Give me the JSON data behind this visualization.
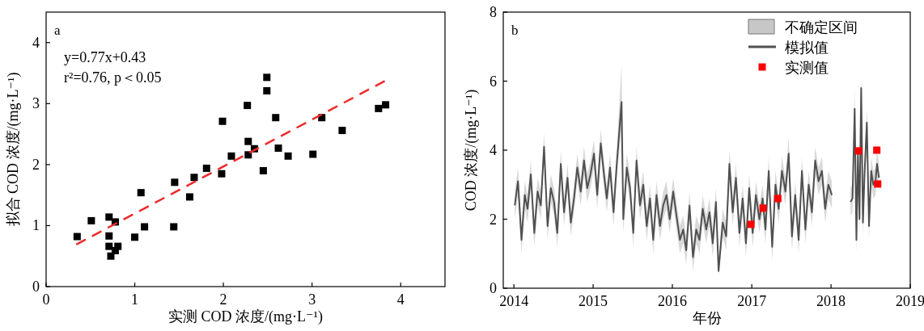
{
  "chart_data": [
    {
      "type": "scatter",
      "xlabel": "实测 COD 浓度/(mg·L⁻¹)",
      "ylabel": "拟合 COD 浓度/(mg·L⁻¹)",
      "xlim": [
        0,
        4.5
      ],
      "ylim": [
        0,
        4.5
      ],
      "xticks": [
        0,
        1,
        2,
        3,
        4
      ],
      "yticks": [
        0,
        1,
        2,
        3,
        4
      ],
      "marker": "square",
      "legend": false,
      "annotations": [
        "a",
        "y=0.77x+0.43",
        "r²=0.76, p＜0.05"
      ],
      "series": [
        {
          "color": "#000000",
          "x": [
            0.35,
            0.51,
            0.71,
            0.71,
            0.71,
            0.73,
            0.78,
            0.78,
            0.81,
            1.0,
            1.07,
            1.11,
            1.44,
            1.45,
            1.62,
            1.67,
            1.81,
            1.98,
            1.99,
            2.09,
            2.27,
            2.28,
            2.28,
            2.35,
            2.45,
            2.49,
            2.49,
            2.59,
            2.62,
            2.73,
            3.01,
            3.11,
            3.34,
            3.75,
            3.83
          ],
          "values": [
            0.82,
            1.08,
            1.14,
            0.83,
            0.66,
            0.5,
            0.59,
            1.06,
            0.66,
            0.81,
            1.54,
            0.98,
            0.98,
            1.71,
            1.47,
            1.79,
            1.94,
            1.85,
            2.71,
            2.14,
            2.97,
            2.38,
            2.16,
            2.26,
            1.9,
            3.43,
            3.21,
            2.77,
            2.27,
            2.14,
            2.17,
            2.77,
            2.56,
            2.92,
            2.98
          ]
        },
        {
          "type": "line",
          "marker": "none",
          "color": "#ee2a2a",
          "line_style": "dashed",
          "x": [
            0.34,
            3.82
          ],
          "values": [
            0.69,
            3.37
          ]
        }
      ]
    },
    {
      "type": "line",
      "xlabel": "年份",
      "ylabel": "COD 浓度/(mg·L⁻¹)",
      "xlim": [
        "2013-11-13",
        "2019-01-01"
      ],
      "ylim": [
        0,
        8
      ],
      "xticks": [
        {
          "value": "2014-01-01",
          "label": "2014"
        },
        {
          "value": "2015-01-01",
          "label": "2015"
        },
        {
          "value": "2016-01-01",
          "label": "2016"
        },
        {
          "value": "2017-01-01",
          "label": "2017"
        },
        {
          "value": "2018-01-01",
          "label": "2018"
        },
        {
          "value": "2019-01-01",
          "label": "2019"
        }
      ],
      "yticks": [
        0,
        2,
        4,
        6,
        8
      ],
      "marker": "square",
      "legend": "top right",
      "annotations": [
        "b",
        "不确定区间"
      ],
      "series": [
        {
          "name": "模拟值",
          "marker": "none",
          "color": "#505050",
          "x": [
            "2014-01-05",
            "2014-01-20",
            "2014-02-05",
            "2014-02-20",
            "2014-03-05",
            "2014-03-20",
            "2014-04-05",
            "2014-04-20",
            "2014-05-05",
            "2014-05-20",
            "2014-06-05",
            "2014-06-20",
            "2014-07-05",
            "2014-07-20",
            "2014-08-05",
            "2014-08-20",
            "2014-09-05",
            "2014-09-20",
            "2014-10-05",
            "2014-10-20",
            "2014-11-05",
            "2014-11-20",
            "2014-12-05",
            "2014-12-20",
            "2015-01-05",
            "2015-01-20",
            "2015-02-05",
            "2015-02-20",
            "2015-03-05",
            "2015-03-20",
            "2015-04-05",
            "2015-04-20",
            "2015-05-12",
            "2015-05-20",
            "2015-06-05",
            "2015-06-20",
            "2015-07-05",
            "2015-07-20",
            "2015-08-05",
            "2015-08-20",
            "2015-09-05",
            "2015-09-20",
            "2015-10-05",
            "2015-10-20",
            "2015-11-05",
            "2015-11-20",
            "2015-12-05",
            "2015-12-20",
            "2016-01-05",
            "2016-01-20",
            "2016-02-05",
            "2016-02-20",
            "2016-03-05",
            "2016-03-20",
            "2016-04-05",
            "2016-04-20",
            "2016-05-05",
            "2016-05-20",
            "2016-06-05",
            "2016-06-20",
            "2016-07-05",
            "2016-07-20",
            "2016-08-01",
            "2016-08-20",
            "2016-09-05",
            "2016-09-20",
            "2016-10-05",
            "2016-10-20",
            "2016-11-05",
            "2016-11-20",
            "2016-12-05",
            "2016-12-20",
            "2017-01-05",
            "2017-01-20",
            "2017-02-05",
            "2017-02-20",
            "2017-03-05",
            "2017-03-20",
            "2017-04-05",
            "2017-04-20",
            "2017-05-05",
            "2017-05-20",
            "2017-06-05",
            "2017-06-20",
            "2017-07-05",
            "2017-07-20",
            "2017-08-05",
            "2017-08-20",
            "2017-09-05",
            "2017-09-20",
            "2017-10-05",
            "2017-10-20",
            "2017-11-05",
            "2017-11-20",
            "2017-12-05",
            "2017-12-20",
            "2018-01-05",
            "2018-02-15",
            "2018-04-01",
            "2018-04-10",
            "2018-04-20",
            "2018-04-28",
            "2018-05-05",
            "2018-05-12",
            "2018-05-20",
            "2018-05-28",
            "2018-06-05",
            "2018-06-15",
            "2018-06-25",
            "2018-07-05",
            "2018-07-15",
            "2018-07-25",
            "2018-08-01",
            "2018-08-10"
          ],
          "values": [
            2.4,
            3.1,
            1.4,
            2.7,
            2.3,
            3.3,
            1.6,
            2.8,
            2.4,
            4.1,
            1.8,
            2.9,
            2.5,
            1.6,
            3.6,
            2.2,
            3.2,
            1.9,
            2.6,
            3.5,
            2.8,
            3.7,
            2.9,
            3.3,
            3.9,
            2.7,
            4.2,
            3.3,
            2.6,
            3.5,
            2.2,
            3.6,
            5.4,
            2.0,
            3.5,
            2.9,
            1.6,
            3.7,
            2.4,
            3.0,
            1.8,
            2.6,
            1.4,
            2.7,
            1.8,
            2.4,
            2.7,
            2.0,
            2.8,
            2.1,
            1.4,
            1.7,
            1.1,
            2.4,
            0.9,
            1.7,
            1.4,
            2.3,
            1.7,
            2.2,
            1.3,
            2.5,
            0.5,
            1.9,
            1.5,
            3.6,
            2.2,
            3.2,
            1.6,
            2.6,
            1.3,
            2.9,
            1.6,
            2.7,
            2.0,
            2.6,
            1.7,
            3.4,
            1.2,
            3.0,
            2.3,
            3.4,
            2.8,
            3.9,
            1.5,
            2.7,
            1.4,
            3.4,
            1.7,
            3.0,
            2.2,
            3.7,
            3.1,
            3.4,
            2.3,
            3.0,
            2.7,
            null,
            2.5,
            2.6,
            5.2,
            1.4,
            3.9,
            2.0,
            5.8,
            1.9,
            3.4,
            4.8,
            1.8,
            3.4,
            3.0,
            3.1,
            3.6,
            3.2
          ],
          "lower": [
            2.0,
            2.7,
            1.0,
            2.3,
            1.9,
            2.9,
            1.2,
            2.4,
            2.0,
            3.7,
            1.4,
            2.5,
            2.1,
            1.2,
            3.2,
            1.8,
            2.8,
            1.5,
            2.2,
            3.1,
            2.4,
            3.3,
            2.5,
            2.9,
            3.5,
            2.3,
            3.8,
            2.9,
            2.2,
            3.1,
            1.8,
            3.2,
            4.6,
            1.6,
            3.1,
            2.5,
            1.2,
            3.3,
            2.0,
            2.6,
            1.4,
            2.2,
            1.0,
            2.3,
            1.4,
            2.0,
            2.3,
            1.6,
            2.4,
            1.7,
            1.0,
            1.3,
            0.7,
            2.0,
            0.5,
            1.3,
            1.0,
            1.9,
            1.3,
            1.8,
            0.9,
            2.1,
            0.4,
            1.5,
            1.1,
            3.2,
            1.8,
            2.8,
            1.2,
            2.2,
            0.9,
            2.5,
            1.2,
            2.3,
            1.6,
            2.2,
            1.3,
            3.0,
            0.8,
            2.6,
            1.9,
            3.0,
            2.4,
            3.5,
            1.1,
            2.3,
            1.0,
            3.0,
            1.3,
            2.6,
            1.8,
            3.3,
            2.7,
            3.0,
            1.9,
            2.6,
            2.3,
            null,
            2.1,
            2.2,
            4.6,
            1.0,
            3.5,
            1.6,
            5.0,
            1.5,
            3.0,
            4.2,
            1.4,
            3.0,
            2.6,
            2.7,
            3.2,
            2.8
          ],
          "upper": [
            2.8,
            3.5,
            1.8,
            3.1,
            2.7,
            3.7,
            2.0,
            3.2,
            2.8,
            4.5,
            2.2,
            3.3,
            2.9,
            2.0,
            4.0,
            2.6,
            3.6,
            2.3,
            3.0,
            3.9,
            3.2,
            4.1,
            3.3,
            3.7,
            4.3,
            3.1,
            4.6,
            3.7,
            3.0,
            3.9,
            2.6,
            4.0,
            6.5,
            2.4,
            3.9,
            3.3,
            2.0,
            4.1,
            2.8,
            3.4,
            2.2,
            3.0,
            1.8,
            3.1,
            2.2,
            2.8,
            3.1,
            2.4,
            3.2,
            2.5,
            1.8,
            2.1,
            1.5,
            2.8,
            1.3,
            2.1,
            1.8,
            2.7,
            2.1,
            2.6,
            1.7,
            2.9,
            0.9,
            2.3,
            1.9,
            4.0,
            2.6,
            3.6,
            2.0,
            3.0,
            1.7,
            3.3,
            2.0,
            3.1,
            2.4,
            3.0,
            2.1,
            3.8,
            1.6,
            3.4,
            2.7,
            3.8,
            3.2,
            4.4,
            1.9,
            3.1,
            1.8,
            3.8,
            2.1,
            3.4,
            2.6,
            4.1,
            3.5,
            3.8,
            2.7,
            3.4,
            3.1,
            null,
            2.9,
            3.0,
            5.8,
            1.8,
            4.3,
            2.4,
            6.2,
            2.3,
            3.8,
            5.2,
            2.2,
            3.8,
            3.4,
            3.5,
            4.0,
            3.6
          ]
        },
        {
          "name": "实测值",
          "type": "scatter",
          "color": "#ff0000",
          "x": [
            "2016-12-28",
            "2017-02-22",
            "2017-05-01",
            "2018-05-08",
            "2018-07-31",
            "2018-08-04"
          ],
          "values": [
            1.85,
            2.32,
            2.6,
            3.98,
            4.0,
            3.02
          ]
        }
      ]
    }
  ]
}
